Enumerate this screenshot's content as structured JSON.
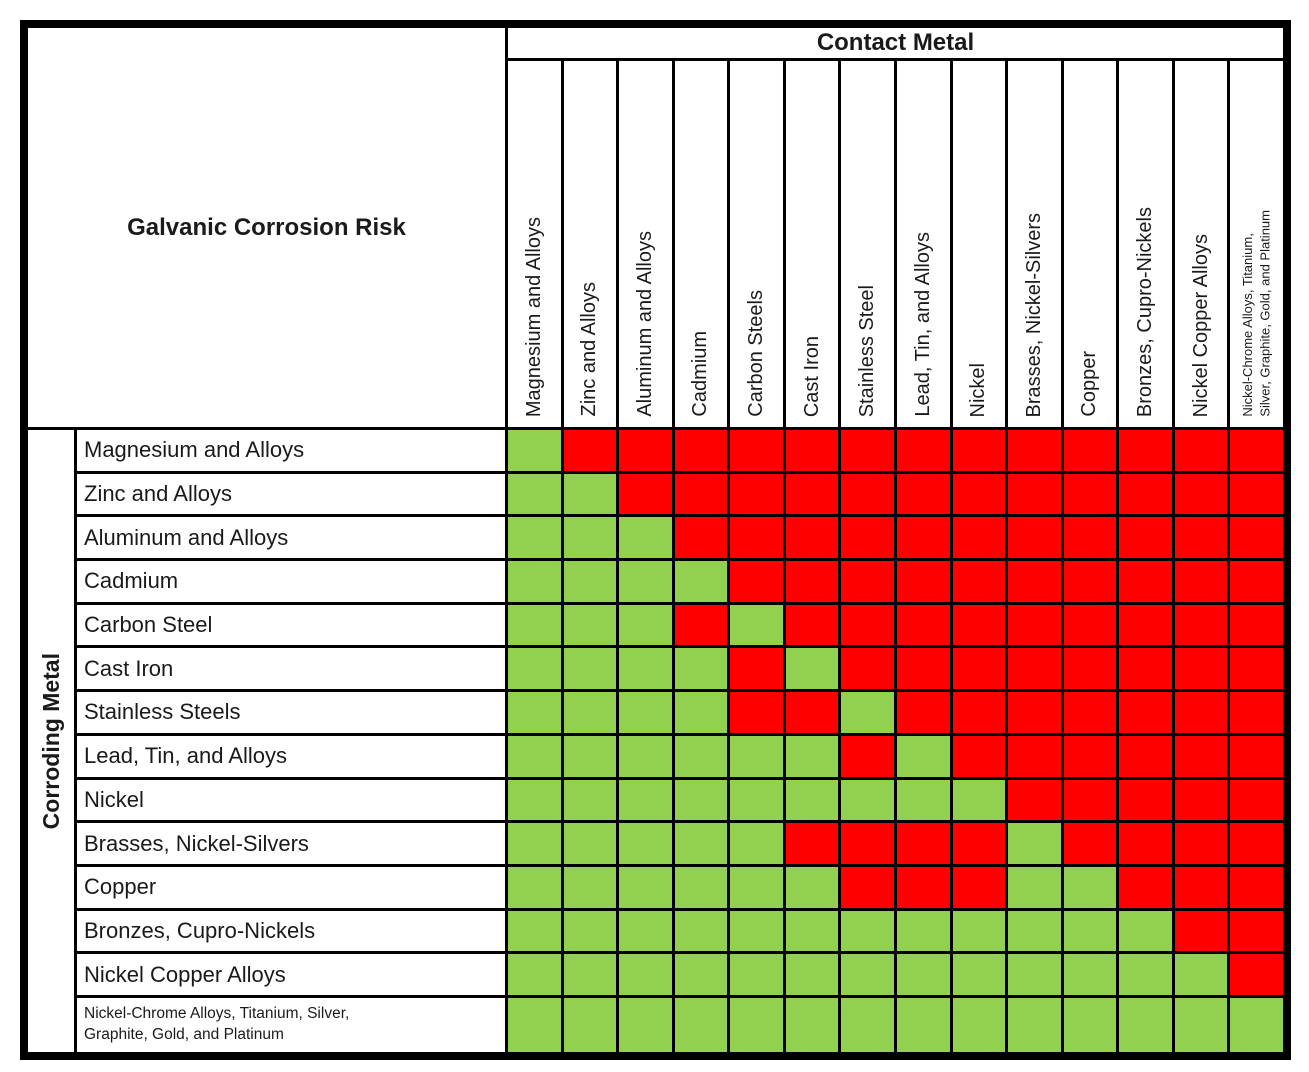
{
  "title": "Galvanic Corrosion Risk",
  "axes": {
    "columns_title": "Contact Metal",
    "rows_title": "Corroding Metal"
  },
  "colors": {
    "compatible_green": "#92D050",
    "risk_red": "#FF0000",
    "grid_black": "#000000",
    "background_white": "#FFFFFF"
  },
  "chart_data": {
    "type": "heatmap",
    "title": "Galvanic Corrosion Risk",
    "x_axis_label": "Contact Metal",
    "y_axis_label": "Corroding Metal",
    "cell_encoding": {
      "G": "green (low galvanic corrosion risk)",
      "R": "red (high galvanic corrosion risk)"
    },
    "columns": [
      "Magnesium and Alloys",
      "Zinc and Alloys",
      "Aluminum and Alloys",
      "Cadmium",
      "Carbon Steels",
      "Cast Iron",
      "Stainless Steel",
      "Lead, Tin, and Alloys",
      "Nickel",
      "Brasses, Nickel-Silvers",
      "Copper",
      "Bronzes, Cupro-Nickels",
      "Nickel Copper Alloys",
      "Nickel-Chrome Alloys, Titanium,\nSilver, Graphite, Gold, and Platinum"
    ],
    "rows": [
      {
        "label": "Magnesium and Alloys",
        "cells": "GRRRRRRRRRRRRR"
      },
      {
        "label": "Zinc and Alloys",
        "cells": "GGRRRRRRRRRRRR"
      },
      {
        "label": "Aluminum and Alloys",
        "cells": "GGGRRRRRRRRRRR"
      },
      {
        "label": "Cadmium",
        "cells": "GGGGRRRRRRRRRR"
      },
      {
        "label": "Carbon Steel",
        "cells": "GGGRGRRRRRRRRR"
      },
      {
        "label": "Cast Iron",
        "cells": "GGGGRGRRRRRRRR"
      },
      {
        "label": "Stainless Steels",
        "cells": "GGGGRRGRRRRRRR"
      },
      {
        "label": "Lead, Tin, and Alloys",
        "cells": "GGGGGGRGRRRRRR"
      },
      {
        "label": "Nickel",
        "cells": "GGGGGGGGGRRRRR"
      },
      {
        "label": "Brasses, Nickel-Silvers",
        "cells": "GGGGGRRRRGRRRR"
      },
      {
        "label": "Copper",
        "cells": "GGGGGGRRRGGRRR"
      },
      {
        "label": "Bronzes, Cupro-Nickels",
        "cells": "GGGGGGGGGGGGRR"
      },
      {
        "label": "Nickel Copper Alloys",
        "cells": "GGGGGGGGGGGGGR"
      },
      {
        "label": "Nickel-Chrome Alloys, Titanium, Silver,\nGraphite, Gold, and Platinum",
        "cells": "GGGGGGGGGGGGGG"
      }
    ]
  }
}
